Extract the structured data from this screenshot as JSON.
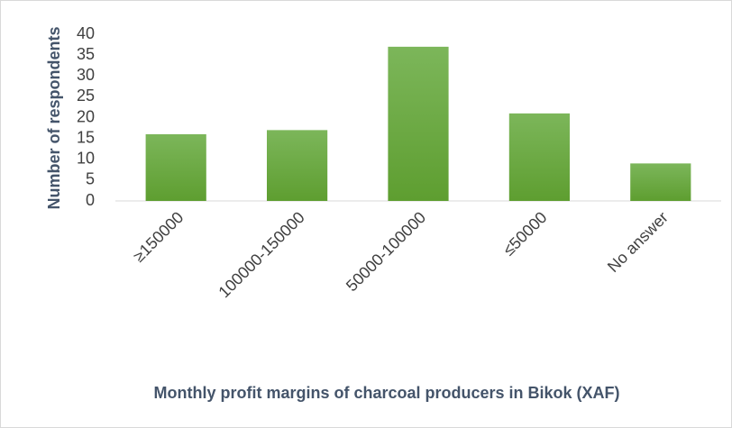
{
  "chart_data": {
    "type": "bar",
    "x_label": "Monthly profit margins of charcoal producers in Bikok (XAF)",
    "y_label": "Number of respondents",
    "categories": [
      "≥150000",
      "100000-150000",
      "50000-100000",
      "≤50000",
      "No answer"
    ],
    "values": [
      16,
      17,
      37,
      21,
      9
    ],
    "color": "#6aaa3e",
    "ylim": [
      0,
      40
    ],
    "yticks": [
      0,
      5,
      10,
      15,
      20,
      25,
      30,
      35,
      40
    ],
    "grid": false
  }
}
